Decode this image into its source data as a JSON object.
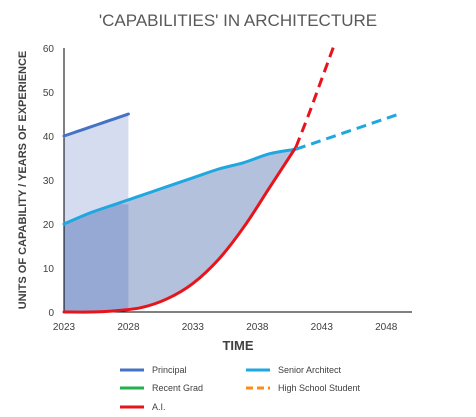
{
  "chart_data": {
    "type": "line",
    "title": "'CAPABILITIES' IN ARCHITECTURE",
    "xlabel": "TIME",
    "ylabel": "UNITS OF CAPABILITY / YEARS OF EXPERIENCE",
    "xlim": [
      2023,
      2050
    ],
    "ylim": [
      0,
      60
    ],
    "xticks": [
      "2023",
      "2028",
      "2033",
      "2038",
      "2043",
      "2048"
    ],
    "yticks": [
      "0",
      "10",
      "20",
      "30",
      "40",
      "50",
      "60"
    ],
    "grid": false,
    "legend_position": "bottom",
    "series": [
      {
        "name": "Principal",
        "color": "#4472c4",
        "style": "solid",
        "x": [
          2023,
          2024,
          2025,
          2026,
          2027,
          2028
        ],
        "y": [
          40,
          41,
          42,
          43,
          44,
          45
        ]
      },
      {
        "name": "Senior Architect",
        "color": "#1fa7e0",
        "style": "solid",
        "x": [
          2023,
          2025,
          2027,
          2029,
          2031,
          2033,
          2035,
          2037,
          2039,
          2041
        ],
        "y": [
          20,
          22.5,
          24.5,
          26.5,
          28.5,
          30.5,
          32.5,
          34,
          36,
          37
        ]
      },
      {
        "name": "Recent Grad",
        "color": "#22b14c",
        "style": "solid",
        "x": [],
        "y": []
      },
      {
        "name": "High School Student",
        "color": "#ff8c1a",
        "style": "dashed",
        "x": [],
        "y": []
      },
      {
        "name": "A.I.",
        "color": "#e8141c",
        "style": "solid",
        "x": [
          2023,
          2025,
          2027,
          2029,
          2031,
          2033,
          2035,
          2037,
          2039,
          2041
        ],
        "y": [
          0,
          0,
          0.3,
          1,
          3,
          6.5,
          12,
          19.5,
          28.5,
          37.5
        ]
      }
    ],
    "projections": [
      {
        "series": "Senior Architect",
        "color": "#1fa7e0",
        "style": "dashed",
        "x": [
          2041,
          2049
        ],
        "y": [
          37,
          45
        ]
      },
      {
        "series": "A.I.",
        "color": "#e8141c",
        "style": "dashed",
        "x": [
          2041,
          2042,
          2043,
          2044
        ],
        "y": [
          37.5,
          45,
          53,
          61
        ]
      }
    ]
  }
}
